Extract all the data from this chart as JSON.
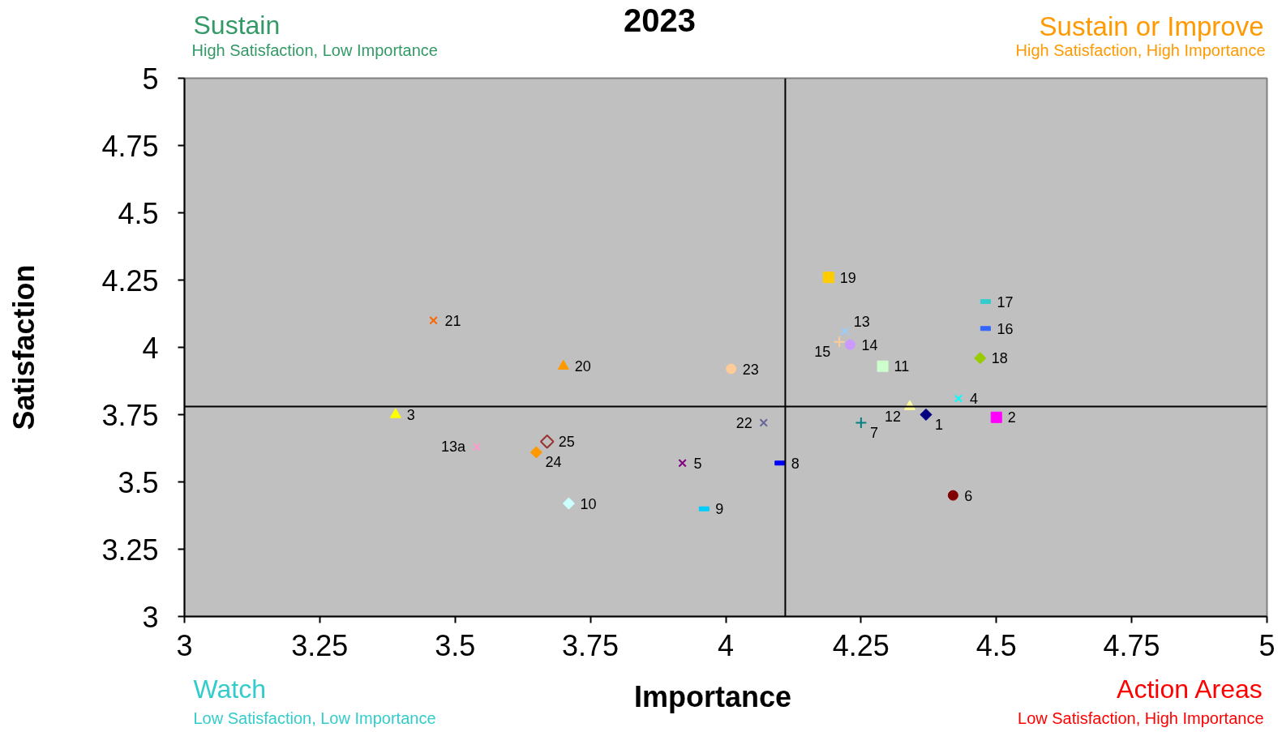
{
  "chart_data": {
    "type": "scatter",
    "title": "2023",
    "xlabel": "Importance",
    "ylabel": "Satisfaction",
    "annotations": [
      "Sustain",
      "High Satisfaction, Low Importance",
      "Sustain or Improve",
      "High Satisfaction, High Importance",
      "Watch",
      "Low Satisfaction, Low Importance",
      "Action Areas",
      "Low Satisfaction, High Importance"
    ],
    "xlim": [
      3,
      5
    ],
    "xticks": [
      3,
      3.25,
      3.5,
      3.75,
      4,
      4.25,
      4.5,
      4.75,
      5
    ],
    "ylim": [
      3,
      5
    ],
    "yticks": [
      3,
      3.25,
      3.5,
      3.75,
      4,
      4.25,
      4.5,
      4.75,
      5
    ],
    "ref_lines": [
      {
        "axis": "x",
        "value": 4.11,
        "color": "#000000"
      },
      {
        "axis": "y",
        "value": 3.78,
        "color": "#000000"
      }
    ],
    "series": [
      {
        "name": "1",
        "color": "#000080",
        "marker": "diamond",
        "x": [
          4.37
        ],
        "values": [
          3.75
        ]
      },
      {
        "name": "2",
        "color": "#ff00ff",
        "marker": "square",
        "x": [
          4.5
        ],
        "values": [
          3.74
        ]
      },
      {
        "name": "3",
        "color": "#ffff00",
        "marker": "triangle",
        "x": [
          3.39
        ],
        "values": [
          3.75
        ]
      },
      {
        "name": "4",
        "color": "#00ffff",
        "marker": "x",
        "x": [
          4.43
        ],
        "values": [
          3.81
        ]
      },
      {
        "name": "5",
        "color": "#800080",
        "marker": "x",
        "x": [
          3.92
        ],
        "values": [
          3.57
        ]
      },
      {
        "name": "6",
        "color": "#800000",
        "marker": "circle",
        "x": [
          4.42
        ],
        "values": [
          3.45
        ]
      },
      {
        "name": "7",
        "color": "#008080",
        "marker": "cross",
        "x": [
          4.25
        ],
        "values": [
          3.72
        ]
      },
      {
        "name": "8",
        "color": "#0000ff",
        "x": [
          4.1
        ],
        "values": [
          3.57
        ]
      },
      {
        "name": "9",
        "color": "#00ccff",
        "x": [
          3.96
        ],
        "values": [
          3.4
        ]
      },
      {
        "name": "10",
        "color": "#ccffff",
        "marker": "diamond",
        "x": [
          3.71
        ],
        "values": [
          3.42
        ]
      },
      {
        "name": "11",
        "color": "#ccffcc",
        "marker": "square",
        "x": [
          4.29
        ],
        "values": [
          3.93
        ]
      },
      {
        "name": "12",
        "color": "#ffff99",
        "marker": "triangle",
        "x": [
          4.34
        ],
        "values": [
          3.78
        ]
      },
      {
        "name": "13",
        "color": "#99ccff",
        "marker": "x",
        "x": [
          4.22
        ],
        "values": [
          4.06
        ]
      },
      {
        "name": "13a",
        "color": "#ff99cc",
        "marker": "x",
        "x": [
          3.54
        ],
        "values": [
          3.63
        ]
      },
      {
        "name": "14",
        "color": "#cc99ff",
        "marker": "circle",
        "x": [
          4.23
        ],
        "values": [
          4.01
        ]
      },
      {
        "name": "15",
        "color": "#ffcc99",
        "marker": "cross",
        "x": [
          4.21
        ],
        "values": [
          4.02
        ]
      },
      {
        "name": "16",
        "color": "#3366ff",
        "x": [
          4.48
        ],
        "values": [
          4.07
        ]
      },
      {
        "name": "17",
        "color": "#33cccc",
        "x": [
          4.48
        ],
        "values": [
          4.17
        ]
      },
      {
        "name": "18",
        "color": "#99cc00",
        "marker": "diamond",
        "x": [
          4.47
        ],
        "values": [
          3.96
        ]
      },
      {
        "name": "19",
        "color": "#ffcc00",
        "marker": "square",
        "x": [
          4.19
        ],
        "values": [
          4.26
        ]
      },
      {
        "name": "20",
        "color": "#ff9900",
        "marker": "triangle",
        "x": [
          3.7
        ],
        "values": [
          3.93
        ]
      },
      {
        "name": "21",
        "color": "#ff6600",
        "marker": "x",
        "x": [
          3.46
        ],
        "values": [
          4.1
        ]
      },
      {
        "name": "22",
        "color": "#666699",
        "marker": "x",
        "x": [
          4.07
        ],
        "values": [
          3.72
        ]
      },
      {
        "name": "23",
        "color": "#ffcc99",
        "marker": "circle",
        "x": [
          4.01
        ],
        "values": [
          3.92
        ]
      },
      {
        "name": "24",
        "color": "#ff9900",
        "marker": "diamond",
        "x": [
          3.65
        ],
        "values": [
          3.61
        ]
      },
      {
        "name": "25",
        "color": "#993333",
        "marker": "diamond_open",
        "x": [
          3.67
        ],
        "values": [
          3.65
        ]
      }
    ]
  }
}
